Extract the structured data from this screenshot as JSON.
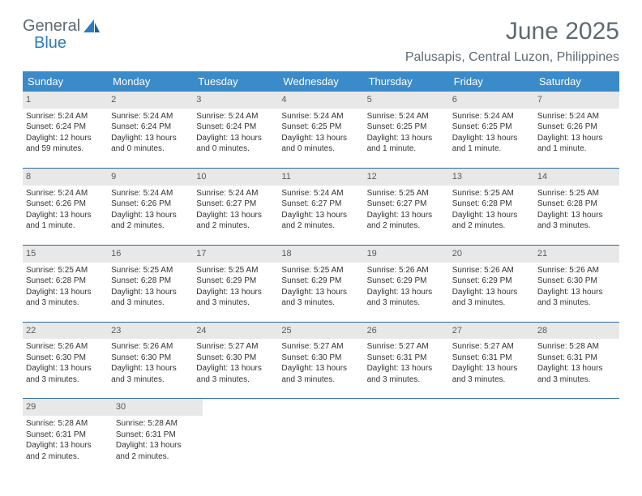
{
  "logo": {
    "line1": "General",
    "line2": "Blue"
  },
  "title": "June 2025",
  "location": "Palusapis, Central Luzon, Philippines",
  "weekday_header_bg": "#3a8bc9",
  "weekday_header_fg": "#ffffff",
  "daynum_bg": "#e8e8e8",
  "week_divider_color": "#2e6ba5",
  "text_color": "#333333",
  "weekdays": [
    "Sunday",
    "Monday",
    "Tuesday",
    "Wednesday",
    "Thursday",
    "Friday",
    "Saturday"
  ],
  "weeks": [
    [
      {
        "n": "1",
        "sunrise": "Sunrise: 5:24 AM",
        "sunset": "Sunset: 6:24 PM",
        "d1": "Daylight: 12 hours",
        "d2": "and 59 minutes."
      },
      {
        "n": "2",
        "sunrise": "Sunrise: 5:24 AM",
        "sunset": "Sunset: 6:24 PM",
        "d1": "Daylight: 13 hours",
        "d2": "and 0 minutes."
      },
      {
        "n": "3",
        "sunrise": "Sunrise: 5:24 AM",
        "sunset": "Sunset: 6:24 PM",
        "d1": "Daylight: 13 hours",
        "d2": "and 0 minutes."
      },
      {
        "n": "4",
        "sunrise": "Sunrise: 5:24 AM",
        "sunset": "Sunset: 6:25 PM",
        "d1": "Daylight: 13 hours",
        "d2": "and 0 minutes."
      },
      {
        "n": "5",
        "sunrise": "Sunrise: 5:24 AM",
        "sunset": "Sunset: 6:25 PM",
        "d1": "Daylight: 13 hours",
        "d2": "and 1 minute."
      },
      {
        "n": "6",
        "sunrise": "Sunrise: 5:24 AM",
        "sunset": "Sunset: 6:25 PM",
        "d1": "Daylight: 13 hours",
        "d2": "and 1 minute."
      },
      {
        "n": "7",
        "sunrise": "Sunrise: 5:24 AM",
        "sunset": "Sunset: 6:26 PM",
        "d1": "Daylight: 13 hours",
        "d2": "and 1 minute."
      }
    ],
    [
      {
        "n": "8",
        "sunrise": "Sunrise: 5:24 AM",
        "sunset": "Sunset: 6:26 PM",
        "d1": "Daylight: 13 hours",
        "d2": "and 1 minute."
      },
      {
        "n": "9",
        "sunrise": "Sunrise: 5:24 AM",
        "sunset": "Sunset: 6:26 PM",
        "d1": "Daylight: 13 hours",
        "d2": "and 2 minutes."
      },
      {
        "n": "10",
        "sunrise": "Sunrise: 5:24 AM",
        "sunset": "Sunset: 6:27 PM",
        "d1": "Daylight: 13 hours",
        "d2": "and 2 minutes."
      },
      {
        "n": "11",
        "sunrise": "Sunrise: 5:24 AM",
        "sunset": "Sunset: 6:27 PM",
        "d1": "Daylight: 13 hours",
        "d2": "and 2 minutes."
      },
      {
        "n": "12",
        "sunrise": "Sunrise: 5:25 AM",
        "sunset": "Sunset: 6:27 PM",
        "d1": "Daylight: 13 hours",
        "d2": "and 2 minutes."
      },
      {
        "n": "13",
        "sunrise": "Sunrise: 5:25 AM",
        "sunset": "Sunset: 6:28 PM",
        "d1": "Daylight: 13 hours",
        "d2": "and 2 minutes."
      },
      {
        "n": "14",
        "sunrise": "Sunrise: 5:25 AM",
        "sunset": "Sunset: 6:28 PM",
        "d1": "Daylight: 13 hours",
        "d2": "and 3 minutes."
      }
    ],
    [
      {
        "n": "15",
        "sunrise": "Sunrise: 5:25 AM",
        "sunset": "Sunset: 6:28 PM",
        "d1": "Daylight: 13 hours",
        "d2": "and 3 minutes."
      },
      {
        "n": "16",
        "sunrise": "Sunrise: 5:25 AM",
        "sunset": "Sunset: 6:28 PM",
        "d1": "Daylight: 13 hours",
        "d2": "and 3 minutes."
      },
      {
        "n": "17",
        "sunrise": "Sunrise: 5:25 AM",
        "sunset": "Sunset: 6:29 PM",
        "d1": "Daylight: 13 hours",
        "d2": "and 3 minutes."
      },
      {
        "n": "18",
        "sunrise": "Sunrise: 5:25 AM",
        "sunset": "Sunset: 6:29 PM",
        "d1": "Daylight: 13 hours",
        "d2": "and 3 minutes."
      },
      {
        "n": "19",
        "sunrise": "Sunrise: 5:26 AM",
        "sunset": "Sunset: 6:29 PM",
        "d1": "Daylight: 13 hours",
        "d2": "and 3 minutes."
      },
      {
        "n": "20",
        "sunrise": "Sunrise: 5:26 AM",
        "sunset": "Sunset: 6:29 PM",
        "d1": "Daylight: 13 hours",
        "d2": "and 3 minutes."
      },
      {
        "n": "21",
        "sunrise": "Sunrise: 5:26 AM",
        "sunset": "Sunset: 6:30 PM",
        "d1": "Daylight: 13 hours",
        "d2": "and 3 minutes."
      }
    ],
    [
      {
        "n": "22",
        "sunrise": "Sunrise: 5:26 AM",
        "sunset": "Sunset: 6:30 PM",
        "d1": "Daylight: 13 hours",
        "d2": "and 3 minutes."
      },
      {
        "n": "23",
        "sunrise": "Sunrise: 5:26 AM",
        "sunset": "Sunset: 6:30 PM",
        "d1": "Daylight: 13 hours",
        "d2": "and 3 minutes."
      },
      {
        "n": "24",
        "sunrise": "Sunrise: 5:27 AM",
        "sunset": "Sunset: 6:30 PM",
        "d1": "Daylight: 13 hours",
        "d2": "and 3 minutes."
      },
      {
        "n": "25",
        "sunrise": "Sunrise: 5:27 AM",
        "sunset": "Sunset: 6:30 PM",
        "d1": "Daylight: 13 hours",
        "d2": "and 3 minutes."
      },
      {
        "n": "26",
        "sunrise": "Sunrise: 5:27 AM",
        "sunset": "Sunset: 6:31 PM",
        "d1": "Daylight: 13 hours",
        "d2": "and 3 minutes."
      },
      {
        "n": "27",
        "sunrise": "Sunrise: 5:27 AM",
        "sunset": "Sunset: 6:31 PM",
        "d1": "Daylight: 13 hours",
        "d2": "and 3 minutes."
      },
      {
        "n": "28",
        "sunrise": "Sunrise: 5:28 AM",
        "sunset": "Sunset: 6:31 PM",
        "d1": "Daylight: 13 hours",
        "d2": "and 3 minutes."
      }
    ],
    [
      {
        "n": "29",
        "sunrise": "Sunrise: 5:28 AM",
        "sunset": "Sunset: 6:31 PM",
        "d1": "Daylight: 13 hours",
        "d2": "and 2 minutes."
      },
      {
        "n": "30",
        "sunrise": "Sunrise: 5:28 AM",
        "sunset": "Sunset: 6:31 PM",
        "d1": "Daylight: 13 hours",
        "d2": "and 2 minutes."
      },
      null,
      null,
      null,
      null,
      null
    ]
  ]
}
